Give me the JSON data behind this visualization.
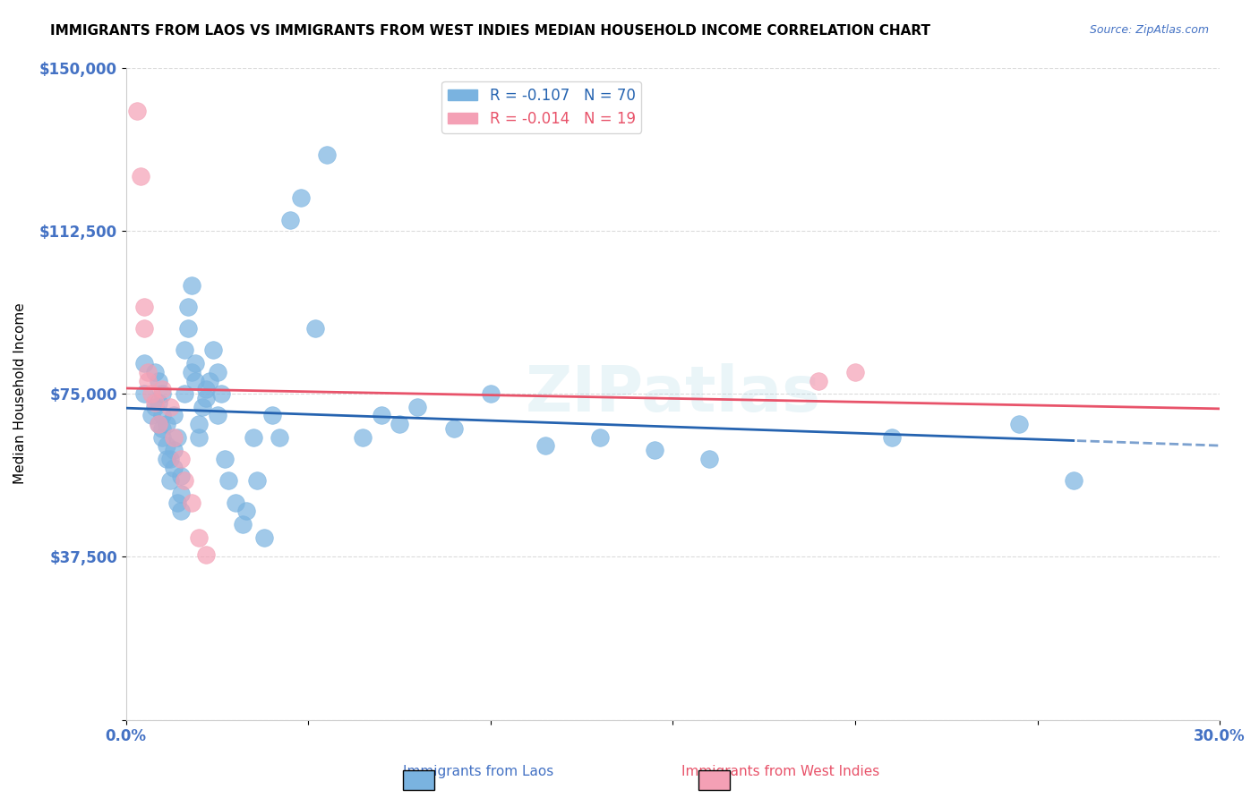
{
  "title": "IMMIGRANTS FROM LAOS VS IMMIGRANTS FROM WEST INDIES MEDIAN HOUSEHOLD INCOME CORRELATION CHART",
  "source": "Source: ZipAtlas.com",
  "xlabel": "",
  "ylabel": "Median Household Income",
  "xlim": [
    0,
    0.3
  ],
  "ylim": [
    0,
    150000
  ],
  "yticks": [
    0,
    37500,
    75000,
    112500,
    150000
  ],
  "ytick_labels": [
    "",
    "$37,500",
    "$75,000",
    "$112,500",
    "$150,000"
  ],
  "xticks": [
    0.0,
    0.05,
    0.1,
    0.15,
    0.2,
    0.25,
    0.3
  ],
  "xtick_labels": [
    "0.0%",
    "",
    "",
    "",
    "",
    "",
    "30.0%"
  ],
  "blue_color": "#7ab3e0",
  "pink_color": "#f4a0b5",
  "blue_line_color": "#2563b0",
  "pink_line_color": "#e8536a",
  "legend_blue_label": "R = -0.107   N = 70",
  "legend_pink_label": "R = -0.014   N = 19",
  "watermark": "ZIPatlas",
  "blue_R": -0.107,
  "blue_N": 70,
  "pink_R": -0.014,
  "pink_N": 19,
  "blue_scatter_x": [
    0.005,
    0.005,
    0.007,
    0.008,
    0.008,
    0.009,
    0.009,
    0.009,
    0.01,
    0.01,
    0.01,
    0.01,
    0.011,
    0.011,
    0.011,
    0.012,
    0.012,
    0.013,
    0.013,
    0.013,
    0.014,
    0.014,
    0.015,
    0.015,
    0.015,
    0.016,
    0.016,
    0.017,
    0.017,
    0.018,
    0.018,
    0.019,
    0.019,
    0.02,
    0.02,
    0.021,
    0.022,
    0.022,
    0.023,
    0.024,
    0.025,
    0.025,
    0.026,
    0.027,
    0.028,
    0.03,
    0.032,
    0.033,
    0.035,
    0.036,
    0.038,
    0.04,
    0.042,
    0.045,
    0.048,
    0.052,
    0.055,
    0.065,
    0.07,
    0.075,
    0.08,
    0.09,
    0.1,
    0.115,
    0.13,
    0.145,
    0.16,
    0.21,
    0.245,
    0.26
  ],
  "blue_scatter_y": [
    75000,
    82000,
    70000,
    72000,
    80000,
    68000,
    73000,
    78000,
    65000,
    67000,
    70000,
    75000,
    60000,
    63000,
    68000,
    55000,
    60000,
    58000,
    62000,
    70000,
    50000,
    65000,
    48000,
    52000,
    56000,
    75000,
    85000,
    90000,
    95000,
    80000,
    100000,
    78000,
    82000,
    65000,
    68000,
    72000,
    74000,
    76000,
    78000,
    85000,
    70000,
    80000,
    75000,
    60000,
    55000,
    50000,
    45000,
    48000,
    65000,
    55000,
    42000,
    70000,
    65000,
    115000,
    120000,
    90000,
    130000,
    65000,
    70000,
    68000,
    72000,
    67000,
    75000,
    63000,
    65000,
    62000,
    60000,
    65000,
    68000,
    55000
  ],
  "pink_scatter_x": [
    0.003,
    0.004,
    0.005,
    0.005,
    0.006,
    0.006,
    0.007,
    0.008,
    0.009,
    0.01,
    0.012,
    0.013,
    0.015,
    0.016,
    0.018,
    0.02,
    0.022,
    0.19,
    0.2
  ],
  "pink_scatter_y": [
    140000,
    125000,
    95000,
    90000,
    78000,
    80000,
    75000,
    73000,
    68000,
    76000,
    72000,
    65000,
    60000,
    55000,
    50000,
    42000,
    38000,
    78000,
    80000
  ],
  "background_color": "#ffffff",
  "grid_color": "#cccccc"
}
